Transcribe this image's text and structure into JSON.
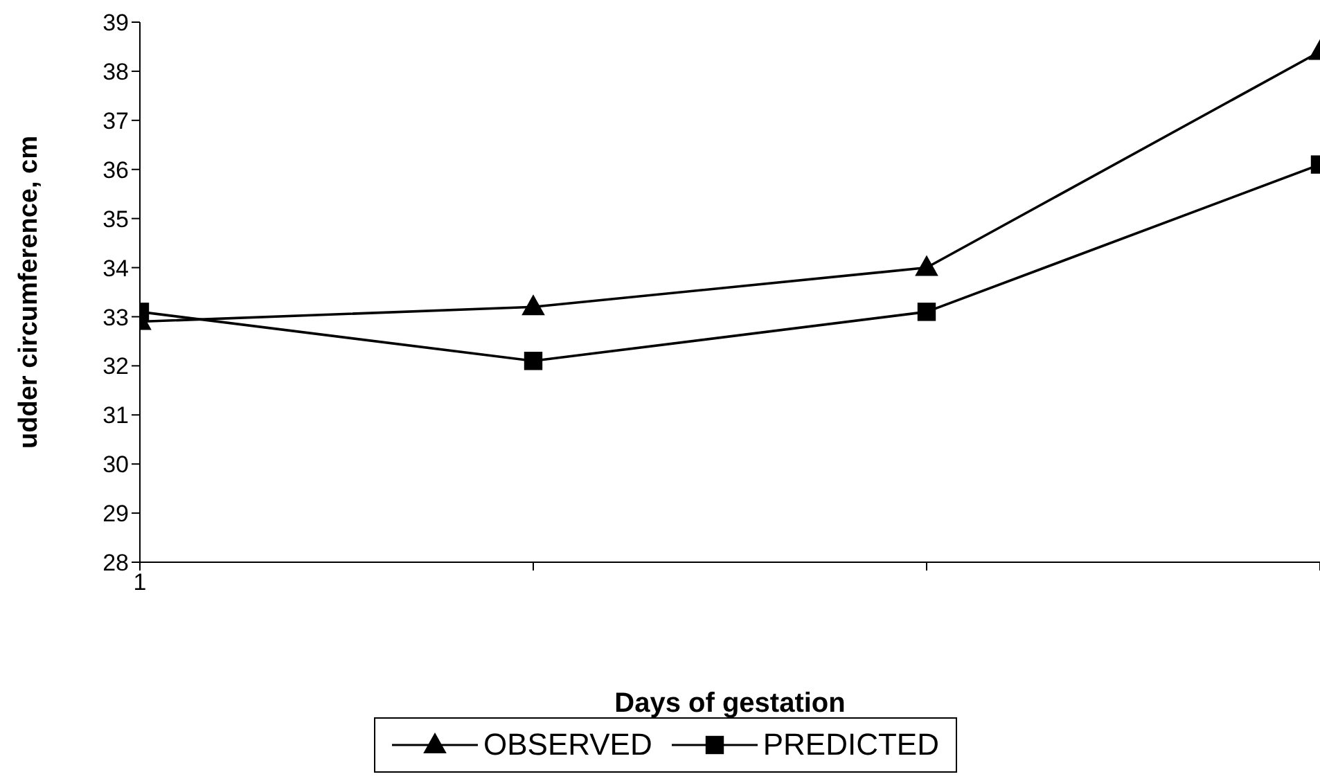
{
  "chart_data": {
    "type": "line",
    "xlabel": "Days of gestation",
    "ylabel": "udder circumference, cm",
    "categories": [
      "1",
      null,
      null,
      null
    ],
    "series": [
      {
        "name": "OBSERVED",
        "color": "#000000",
        "marker": "triangle",
        "values": [
          32.9,
          33.2,
          34.0,
          38.4
        ]
      },
      {
        "name": "PREDICTED",
        "color": "#000000",
        "marker": "square",
        "values": [
          33.1,
          32.1,
          33.1,
          36.1
        ]
      }
    ],
    "ylim": [
      28,
      39
    ],
    "yticks": [
      28,
      29,
      30,
      31,
      32,
      33,
      34,
      35,
      36,
      37,
      38,
      39
    ],
    "grid": false,
    "legend": "bottom",
    "line_style": "solid"
  }
}
